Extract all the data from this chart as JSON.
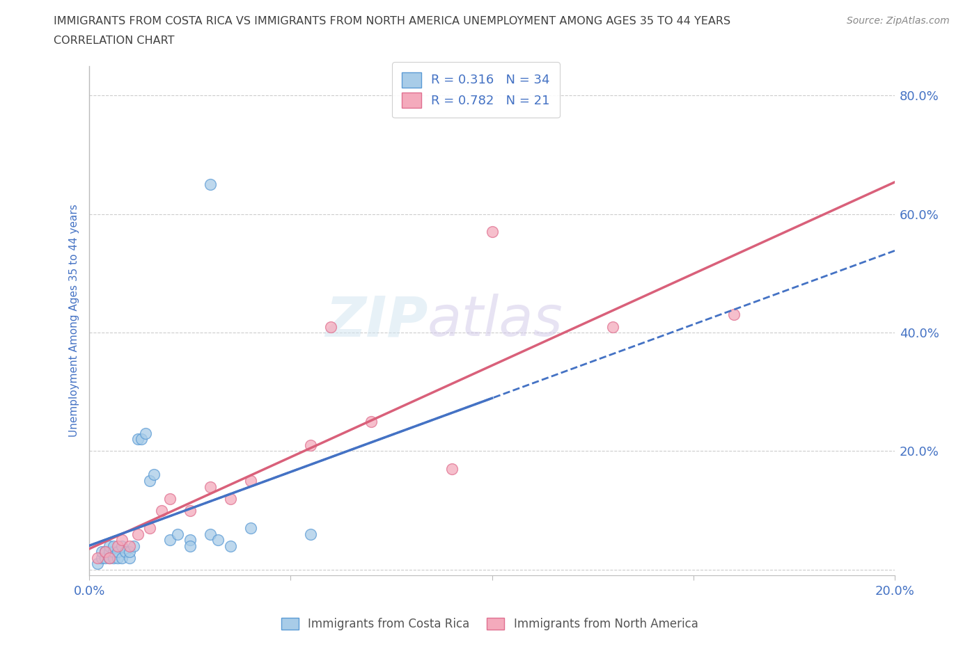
{
  "title_line1": "IMMIGRANTS FROM COSTA RICA VS IMMIGRANTS FROM NORTH AMERICA UNEMPLOYMENT AMONG AGES 35 TO 44 YEARS",
  "title_line2": "CORRELATION CHART",
  "source": "Source: ZipAtlas.com",
  "ylabel": "Unemployment Among Ages 35 to 44 years",
  "xlim": [
    0.0,
    0.2
  ],
  "ylim": [
    -0.01,
    0.85
  ],
  "watermark_zip": "ZIP",
  "watermark_atlas": "atlas",
  "blue_R": 0.316,
  "blue_N": 34,
  "pink_R": 0.782,
  "pink_N": 21,
  "blue_fill_color": "#A8CCE8",
  "pink_fill_color": "#F4AABC",
  "blue_edge_color": "#5B9BD5",
  "pink_edge_color": "#E07090",
  "blue_line_color": "#4472C4",
  "pink_line_color": "#D9607A",
  "blue_scatter_x": [
    0.002,
    0.003,
    0.003,
    0.004,
    0.004,
    0.005,
    0.005,
    0.005,
    0.006,
    0.006,
    0.006,
    0.007,
    0.007,
    0.008,
    0.008,
    0.009,
    0.01,
    0.01,
    0.011,
    0.012,
    0.013,
    0.014,
    0.015,
    0.016,
    0.02,
    0.022,
    0.025,
    0.03,
    0.032,
    0.035,
    0.04,
    0.055,
    0.03,
    0.025
  ],
  "blue_scatter_y": [
    0.01,
    0.02,
    0.03,
    0.02,
    0.03,
    0.02,
    0.03,
    0.04,
    0.02,
    0.03,
    0.04,
    0.02,
    0.03,
    0.02,
    0.04,
    0.03,
    0.02,
    0.03,
    0.04,
    0.22,
    0.22,
    0.23,
    0.15,
    0.16,
    0.05,
    0.06,
    0.05,
    0.06,
    0.05,
    0.04,
    0.07,
    0.06,
    0.65,
    0.04
  ],
  "pink_scatter_x": [
    0.002,
    0.004,
    0.005,
    0.007,
    0.008,
    0.01,
    0.012,
    0.015,
    0.018,
    0.02,
    0.025,
    0.03,
    0.035,
    0.04,
    0.055,
    0.06,
    0.07,
    0.09,
    0.1,
    0.13,
    0.16
  ],
  "pink_scatter_y": [
    0.02,
    0.03,
    0.02,
    0.04,
    0.05,
    0.04,
    0.06,
    0.07,
    0.1,
    0.12,
    0.1,
    0.14,
    0.12,
    0.15,
    0.21,
    0.41,
    0.25,
    0.17,
    0.57,
    0.41,
    0.43
  ],
  "legend_label_blue": "Immigrants from Costa Rica",
  "legend_label_pink": "Immigrants from North America",
  "title_color": "#404040",
  "axis_label_color": "#4472C4",
  "tick_color": "#4472C4",
  "grid_color": "#CCCCCC",
  "background_color": "#FFFFFF",
  "ytick_positions": [
    0.0,
    0.2,
    0.4,
    0.6,
    0.8
  ],
  "ytick_labels": [
    "",
    "20.0%",
    "40.0%",
    "60.0%",
    "80.0%"
  ],
  "xtick_positions": [
    0.0,
    0.05,
    0.1,
    0.15,
    0.2
  ],
  "xtick_labels": [
    "0.0%",
    "",
    "",
    "",
    "20.0%"
  ]
}
